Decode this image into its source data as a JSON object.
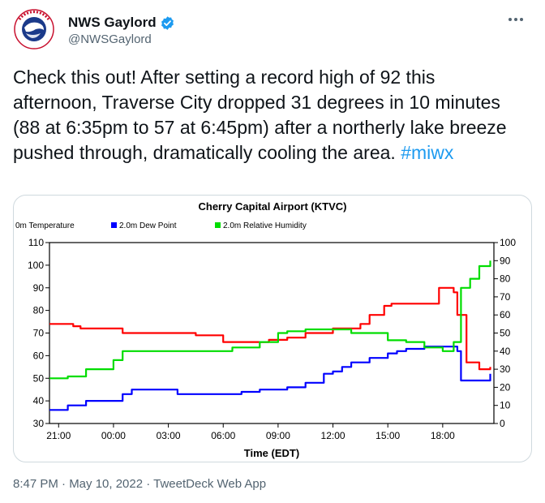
{
  "account": {
    "display_name": "NWS Gaylord",
    "handle": "@NWSGaylord",
    "avatar_text": "NATIONAL WEATHER SERVICE",
    "verified": true
  },
  "tweet": {
    "text_prefix": "Check this out! After setting a record high of 92 this afternoon, Traverse City dropped 31 degrees in 10 minutes (88 at 6:35pm to 57 at 6:45pm) after a northerly lake breeze pushed through, dramatically cooling the area.",
    "hashtag": "#miwx"
  },
  "footer": {
    "timestamp": "8:47 PM · May 10, 2022 · TweetDeck Web App"
  },
  "colors": {
    "temperature": "#ff0000",
    "dew_point": "#0000ff",
    "humidity": "#00dd00",
    "brand_blue": "#1d9bf0"
  },
  "chart_data": {
    "type": "line",
    "title": "Cherry Capital Airport (KTVC)",
    "xlabel": "Time (EDT)",
    "x_ticks": [
      "21:00",
      "00:00",
      "03:00",
      "06:00",
      "09:00",
      "12:00",
      "15:00",
      "18:00"
    ],
    "x_tick_hours": [
      0,
      3,
      6,
      9,
      12,
      15,
      18,
      21
    ],
    "xlim_hours_since_2100": [
      -0.5,
      23.8
    ],
    "y_left": {
      "lim": [
        30,
        110
      ],
      "ticks": [
        30,
        40,
        50,
        60,
        70,
        80,
        90,
        100,
        110
      ]
    },
    "y_right": {
      "lim": [
        0,
        100
      ],
      "ticks": [
        0,
        10,
        20,
        30,
        40,
        50,
        60,
        70,
        80,
        90,
        100
      ]
    },
    "legend": [
      "0m Temperature",
      "2.0m Dew Point",
      "2.0m Relative Humidity"
    ],
    "grid": false,
    "series": [
      {
        "name": "0m Temperature",
        "axis": "left",
        "x": [
          -0.5,
          0.8,
          1.2,
          3.2,
          3.5,
          6.5,
          7.5,
          8.8,
          9,
          11.2,
          11.5,
          12.5,
          13.5,
          15,
          16.5,
          17,
          17.8,
          18.2,
          20.8,
          21.4,
          21.6,
          21.8,
          22.3,
          23,
          23.6
        ],
        "y": [
          74,
          73,
          72,
          72,
          70,
          70,
          69,
          69,
          66,
          66,
          67,
          68,
          70,
          72,
          74,
          78,
          82,
          83,
          90,
          90,
          88,
          78,
          57,
          54,
          55
        ]
      },
      {
        "name": "2.0m Dew Point",
        "axis": "left",
        "x": [
          -0.5,
          0.5,
          1.5,
          3.5,
          4.0,
          4.3,
          6.5,
          7.5,
          10,
          11,
          12.5,
          13.5,
          14.5,
          15.0,
          15.5,
          16,
          17,
          18,
          18.5,
          19,
          20,
          21,
          21.5,
          21.8,
          22,
          23.6
        ],
        "y": [
          36,
          38,
          40,
          43,
          45,
          45,
          43,
          43,
          44,
          45,
          46,
          48,
          52,
          53,
          55,
          57,
          59,
          61,
          62,
          63,
          64,
          64,
          64,
          62,
          49,
          52
        ]
      },
      {
        "name": "2.0m Relative Humidity",
        "axis": "right",
        "x": [
          -0.5,
          0.5,
          1.5,
          3.0,
          3.5,
          4.5,
          6.5,
          8.5,
          9.5,
          11,
          12,
          12.5,
          13.5,
          15,
          16,
          17,
          18,
          19,
          20,
          21,
          21.5,
          21.6,
          22.0,
          22.5,
          23.0,
          23.6
        ],
        "y": [
          25,
          26,
          30,
          35,
          40,
          40,
          40,
          40,
          42,
          45,
          50,
          51,
          52,
          52,
          50,
          50,
          46,
          45,
          42,
          40,
          40,
          45,
          75,
          80,
          87,
          90
        ]
      }
    ]
  }
}
